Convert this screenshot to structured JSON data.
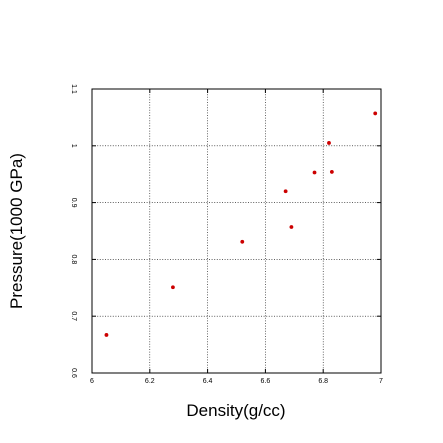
{
  "chart_data": {
    "type": "scatter",
    "xlabel": "Density(g/cc)",
    "ylabel": "Pressure(1000 GPa)",
    "xlim": [
      6,
      7
    ],
    "ylim": [
      0.6,
      1.1
    ],
    "xticks": [
      6,
      6.2,
      6.4,
      6.6,
      6.8,
      7
    ],
    "yticks": [
      0.6,
      0.7,
      0.8,
      0.9,
      1,
      1.1
    ],
    "xtick_labels": [
      "6",
      "6.2",
      "6.4",
      "6.6",
      "6.8",
      "7"
    ],
    "ytick_labels": [
      "0.6",
      "0.7",
      "0.8",
      "0.9",
      "1",
      "1.1"
    ],
    "grid": true,
    "marker_color": "#cc0000",
    "series": [
      {
        "points": [
          {
            "x": 6.05,
            "y": 0.667
          },
          {
            "x": 6.28,
            "y": 0.751
          },
          {
            "x": 6.52,
            "y": 0.831
          },
          {
            "x": 6.67,
            "y": 0.92
          },
          {
            "x": 6.69,
            "y": 0.857
          },
          {
            "x": 6.77,
            "y": 0.953
          },
          {
            "x": 6.82,
            "y": 1.005
          },
          {
            "x": 6.83,
            "y": 0.954
          },
          {
            "x": 6.98,
            "y": 1.057
          }
        ]
      }
    ]
  }
}
